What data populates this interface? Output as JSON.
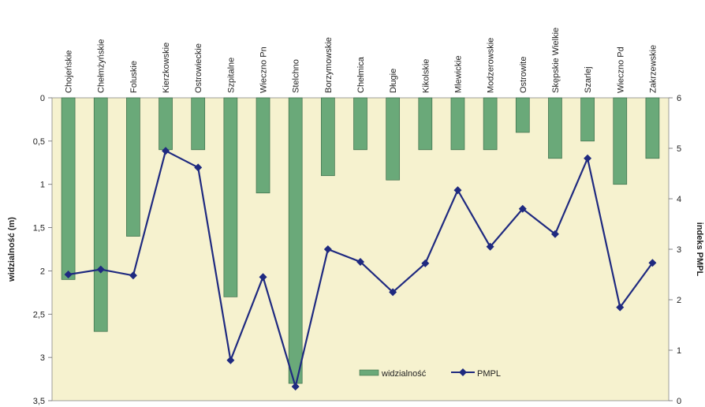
{
  "chart_data": {
    "type": "bar+line",
    "categories": [
      "Chojeńskie",
      "Chełmżyńskie",
      "Foluskie",
      "Kierzkowskie",
      "Ostrowieckie",
      "Szpitalne",
      "Wieczno Pn",
      "Stelchno",
      "Borzymowskie",
      "Chełmica",
      "Długie",
      "Kikolskie",
      "Mlewickie",
      "Modzerowskie",
      "Ostrowite",
      "Skępskie Wielkie",
      "Szarlej",
      "Wieczno Pd",
      "Zakrzewskie"
    ],
    "series": [
      {
        "name": "widzialność",
        "kind": "bar",
        "axis": "left",
        "color": "#6aa979",
        "values": [
          2.1,
          2.7,
          1.6,
          0.6,
          0.6,
          2.3,
          1.1,
          3.3,
          0.9,
          0.6,
          0.95,
          0.6,
          0.6,
          0.6,
          0.4,
          0.7,
          0.5,
          1.0,
          0.7
        ]
      },
      {
        "name": "PMPL",
        "kind": "line",
        "axis": "right",
        "color": "#1f2a80",
        "values": [
          2.5,
          2.6,
          2.48,
          4.95,
          4.62,
          0.8,
          2.45,
          0.28,
          3.0,
          2.75,
          2.15,
          2.72,
          4.17,
          3.05,
          3.8,
          3.3,
          4.8,
          1.85,
          2.73
        ]
      }
    ],
    "ylabel": "widzialność (m)",
    "y2label": "indeks PMPL",
    "ylim": [
      0,
      3.5
    ],
    "y_inverted": true,
    "yticks": [
      "0",
      "0,5",
      "1",
      "1,5",
      "2",
      "2,5",
      "3",
      "3,5"
    ],
    "y2lim": [
      0,
      6
    ],
    "y2ticks": [
      "0",
      "1",
      "2",
      "3",
      "4",
      "5",
      "6"
    ],
    "legend": [
      "widzialność",
      "PMPL"
    ],
    "legend_position": "bottom-right inside",
    "plot_background": "#f6f2cf",
    "grid": false
  }
}
